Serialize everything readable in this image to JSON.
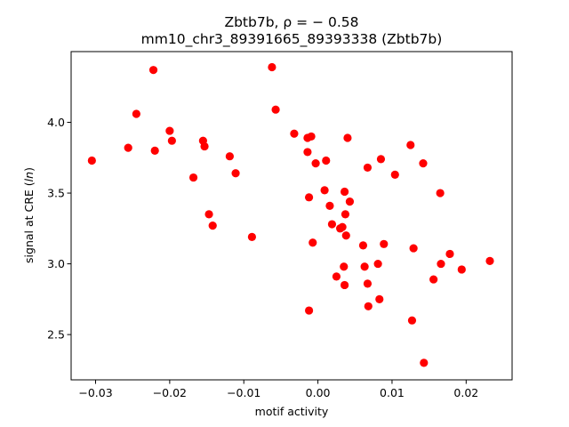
{
  "chart_data": {
    "type": "scatter",
    "title_line1": "Zbtb7b, ρ = − 0.58",
    "title_line2": "mm10_chr3_89391665_89393338 (Zbtb7b)",
    "xlabel": "motif activity",
    "ylabel": "signal at CRE (ln)",
    "xlim": [
      -0.0333,
      0.0262
    ],
    "ylim": [
      2.18,
      4.5
    ],
    "x_ticks": [
      -0.03,
      -0.02,
      -0.01,
      0.0,
      0.01,
      0.02
    ],
    "x_tick_labels": [
      "−0.03",
      "−0.02",
      "−0.01",
      "0.00",
      "0.01",
      "0.02"
    ],
    "y_ticks": [
      2.5,
      3.0,
      3.5,
      4.0
    ],
    "y_tick_labels": [
      "2.5",
      "3.0",
      "3.5",
      "4.0"
    ],
    "grid": false,
    "marker_color": "#ff0000",
    "points": [
      {
        "x": -0.0305,
        "y": 3.73
      },
      {
        "x": -0.0256,
        "y": 3.82
      },
      {
        "x": -0.0245,
        "y": 4.06
      },
      {
        "x": -0.0222,
        "y": 4.37
      },
      {
        "x": -0.022,
        "y": 3.8
      },
      {
        "x": -0.02,
        "y": 3.94
      },
      {
        "x": -0.0197,
        "y": 3.87
      },
      {
        "x": -0.0168,
        "y": 3.61
      },
      {
        "x": -0.0155,
        "y": 3.87
      },
      {
        "x": -0.0153,
        "y": 3.83
      },
      {
        "x": -0.0147,
        "y": 3.35
      },
      {
        "x": -0.0142,
        "y": 3.27
      },
      {
        "x": -0.0119,
        "y": 3.76
      },
      {
        "x": -0.0111,
        "y": 3.64
      },
      {
        "x": -0.0089,
        "y": 3.19
      },
      {
        "x": -0.0062,
        "y": 4.39
      },
      {
        "x": -0.0057,
        "y": 4.09
      },
      {
        "x": -0.0032,
        "y": 3.92
      },
      {
        "x": -0.0014,
        "y": 3.89
      },
      {
        "x": -0.0014,
        "y": 3.79
      },
      {
        "x": -0.0012,
        "y": 3.47
      },
      {
        "x": -0.0012,
        "y": 2.67
      },
      {
        "x": -0.0009,
        "y": 3.9
      },
      {
        "x": -0.0007,
        "y": 3.15
      },
      {
        "x": -0.0003,
        "y": 3.71
      },
      {
        "x": 0.0009,
        "y": 3.52
      },
      {
        "x": 0.0011,
        "y": 3.73
      },
      {
        "x": 0.0016,
        "y": 3.41
      },
      {
        "x": 0.0019,
        "y": 3.28
      },
      {
        "x": 0.0025,
        "y": 2.91
      },
      {
        "x": 0.003,
        "y": 3.25
      },
      {
        "x": 0.0033,
        "y": 3.26
      },
      {
        "x": 0.0035,
        "y": 2.98
      },
      {
        "x": 0.0036,
        "y": 3.51
      },
      {
        "x": 0.0036,
        "y": 2.85
      },
      {
        "x": 0.0037,
        "y": 3.35
      },
      {
        "x": 0.0038,
        "y": 3.2
      },
      {
        "x": 0.004,
        "y": 3.89
      },
      {
        "x": 0.0043,
        "y": 3.44
      },
      {
        "x": 0.0061,
        "y": 3.13
      },
      {
        "x": 0.0063,
        "y": 2.98
      },
      {
        "x": 0.0067,
        "y": 3.68
      },
      {
        "x": 0.0067,
        "y": 2.86
      },
      {
        "x": 0.0068,
        "y": 2.7
      },
      {
        "x": 0.0081,
        "y": 3.0
      },
      {
        "x": 0.0083,
        "y": 2.75
      },
      {
        "x": 0.0085,
        "y": 3.74
      },
      {
        "x": 0.0089,
        "y": 3.14
      },
      {
        "x": 0.0104,
        "y": 3.63
      },
      {
        "x": 0.0125,
        "y": 3.84
      },
      {
        "x": 0.0127,
        "y": 2.6
      },
      {
        "x": 0.0129,
        "y": 3.11
      },
      {
        "x": 0.0142,
        "y": 3.71
      },
      {
        "x": 0.0143,
        "y": 2.3
      },
      {
        "x": 0.0156,
        "y": 2.89
      },
      {
        "x": 0.0165,
        "y": 3.5
      },
      {
        "x": 0.0166,
        "y": 3.0
      },
      {
        "x": 0.0178,
        "y": 3.07
      },
      {
        "x": 0.0194,
        "y": 2.96
      },
      {
        "x": 0.0232,
        "y": 3.02
      }
    ]
  }
}
